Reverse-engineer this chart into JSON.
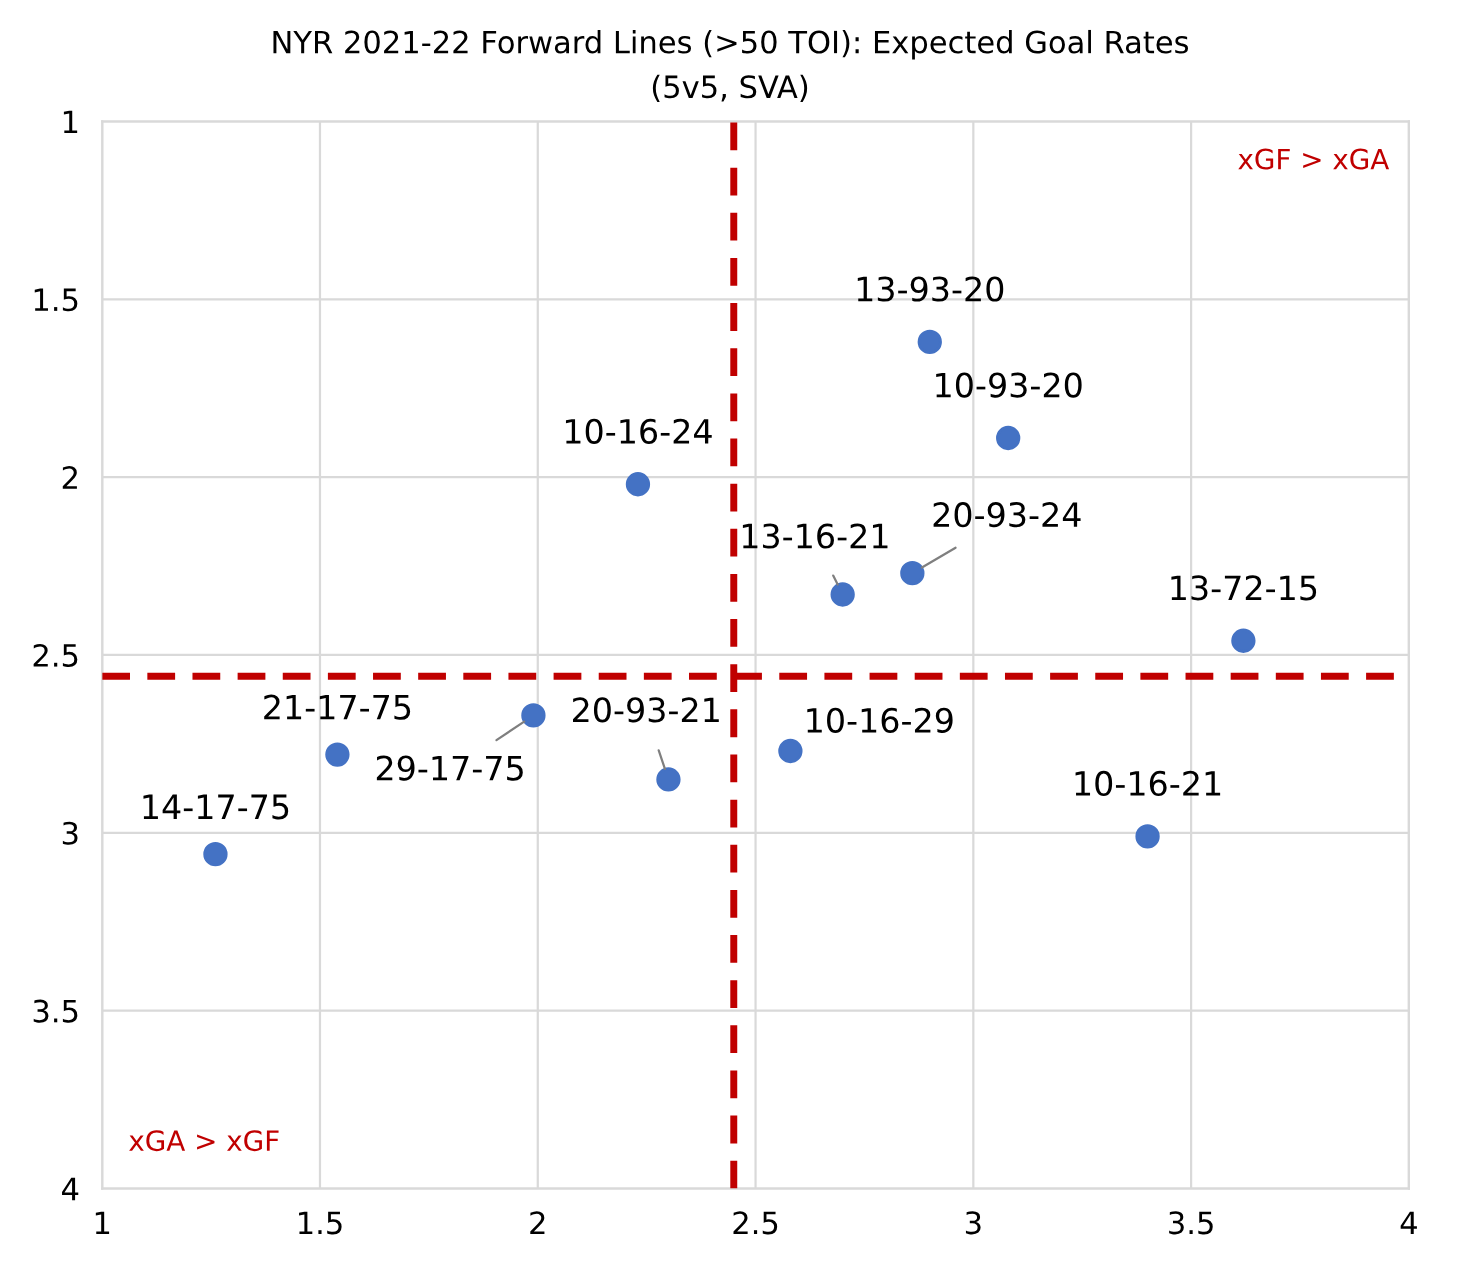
{
  "chart_data": {
    "type": "scatter",
    "title": "NYR 2021-22 Forward Lines (>50 TOI): Expected Goal Rates",
    "subtitle": "(5v5, SVA)",
    "x": [
      1.26,
      1.54,
      1.99,
      2.23,
      2.3,
      2.9,
      3.08,
      2.7,
      2.86,
      3.62,
      2.58,
      3.4
    ],
    "series": [
      {
        "color": "#4472c4",
        "values": [
          3.06,
          2.78,
          2.67,
          2.02,
          2.85,
          1.62,
          1.89,
          2.33,
          2.27,
          2.46,
          2.77,
          3.01
        ]
      }
    ],
    "marker": "circle",
    "xlim": [
      1,
      4
    ],
    "xticks": [
      1,
      1.5,
      2,
      2.5,
      3,
      3.5,
      4
    ],
    "ylim": [
      4,
      1
    ],
    "yticks": [
      1,
      1.5,
      2,
      2.5,
      3,
      3.5,
      4
    ],
    "grid": true,
    "legend": false,
    "ref_lines": [
      {
        "axis": "x",
        "value": 2.45,
        "color": "#c00000",
        "line_style": "dashed"
      },
      {
        "axis": "y",
        "value": 2.56,
        "color": "#c00000",
        "line_style": "dashed"
      }
    ],
    "annotations": [
      {
        "text": "14-17-75",
        "x": 1.26,
        "y": 3.06
      },
      {
        "text": "21-17-75",
        "x": 1.54,
        "y": 2.78
      },
      {
        "text": "29-17-75",
        "x": 1.99,
        "y": 2.67
      },
      {
        "text": "10-16-24",
        "x": 2.23,
        "y": 2.02
      },
      {
        "text": "20-93-21",
        "x": 2.3,
        "y": 2.85
      },
      {
        "text": "13-93-20",
        "x": 2.9,
        "y": 1.62
      },
      {
        "text": "10-93-20",
        "x": 3.08,
        "y": 1.89
      },
      {
        "text": "13-16-21",
        "x": 2.7,
        "y": 2.33
      },
      {
        "text": "20-93-24",
        "x": 2.86,
        "y": 2.27
      },
      {
        "text": "13-72-15",
        "x": 3.62,
        "y": 2.46
      },
      {
        "text": "10-16-29",
        "x": 2.58,
        "y": 2.77
      },
      {
        "text": "10-16-21",
        "x": 3.4,
        "y": 3.01
      },
      "xGF > xGA",
      "xGA > xGF"
    ]
  }
}
